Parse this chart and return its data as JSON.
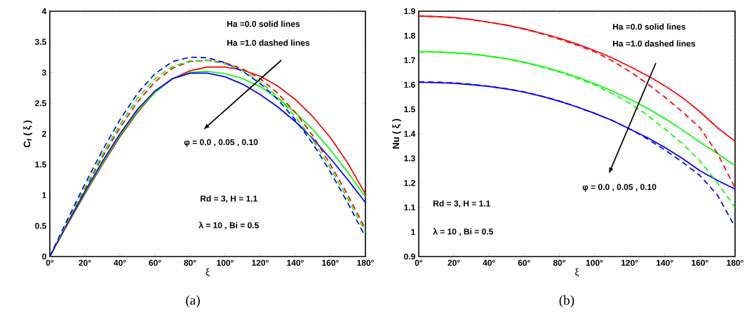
{
  "chart_data": [
    {
      "type": "line",
      "title": "(a)",
      "xlabel": "ξ",
      "ylabel": "C$_{f}$ ( ξ )",
      "marker": "none",
      "grid": false,
      "x": [
        0,
        10,
        20,
        30,
        40,
        50,
        60,
        70,
        80,
        90,
        100,
        110,
        120,
        130,
        140,
        150,
        160,
        170,
        180
      ],
      "xlim": [
        0,
        180
      ],
      "ylim": [
        0,
        4
      ],
      "xticks": [
        {
          "value": 0,
          "label": "0°"
        },
        {
          "value": 20,
          "label": "20°"
        },
        {
          "value": 40,
          "label": "40°"
        },
        {
          "value": 60,
          "label": "60°"
        },
        {
          "value": 80,
          "label": "80°"
        },
        {
          "value": 100,
          "label": "100°"
        },
        {
          "value": 120,
          "label": "120°"
        },
        {
          "value": 140,
          "label": "140°"
        },
        {
          "value": 160,
          "label": "160°"
        },
        {
          "value": 180,
          "label": "180°"
        }
      ],
      "yticks": [
        0,
        0.5,
        1,
        1.5,
        2,
        2.5,
        3,
        3.5,
        4
      ],
      "annotations": [
        "Ha =0.0 solid lines",
        "Ha =1.0 dashed lines",
        "φ = 0.0 , 0.05 , 0.10",
        "Rd = 3, H = 1.1",
        "λ = 10 , Bi = 0.5"
      ],
      "series": [
        {
          "color": "#ff0000",
          "line_style": "solid",
          "values": [
            0,
            0.52,
            1.02,
            1.5,
            1.95,
            2.35,
            2.68,
            2.9,
            3.03,
            3.09,
            3.09,
            3.04,
            2.94,
            2.78,
            2.56,
            2.28,
            1.94,
            1.52,
            1.02
          ]
        },
        {
          "color": "#00ff00",
          "line_style": "solid",
          "values": [
            0,
            0.53,
            1.04,
            1.52,
            1.97,
            2.37,
            2.68,
            2.9,
            3.0,
            3.02,
            2.98,
            2.9,
            2.77,
            2.58,
            2.35,
            2.07,
            1.74,
            1.37,
            0.97
          ]
        },
        {
          "color": "#0000ff",
          "line_style": "solid",
          "values": [
            0,
            0.54,
            1.06,
            1.55,
            2.0,
            2.4,
            2.7,
            2.9,
            2.99,
            2.99,
            2.93,
            2.81,
            2.64,
            2.44,
            2.2,
            1.92,
            1.6,
            1.25,
            0.88
          ]
        },
        {
          "color": "#ff0000",
          "line_style": "dashed",
          "values": [
            0,
            0.56,
            1.1,
            1.62,
            2.1,
            2.52,
            2.85,
            3.07,
            3.18,
            3.2,
            3.16,
            3.06,
            2.9,
            2.66,
            2.35,
            1.97,
            1.5,
            1.0,
            0.45
          ]
        },
        {
          "color": "#00ff00",
          "line_style": "dashed",
          "values": [
            0,
            0.57,
            1.12,
            1.66,
            2.15,
            2.58,
            2.9,
            3.1,
            3.19,
            3.2,
            3.14,
            3.03,
            2.85,
            2.6,
            2.28,
            1.9,
            1.44,
            0.94,
            0.4
          ]
        },
        {
          "color": "#0000ff",
          "line_style": "dashed",
          "values": [
            0,
            0.6,
            1.18,
            1.73,
            2.23,
            2.66,
            2.98,
            3.18,
            3.25,
            3.24,
            3.16,
            3.02,
            2.82,
            2.56,
            2.23,
            1.84,
            1.38,
            0.87,
            0.32
          ]
        }
      ]
    },
    {
      "type": "line",
      "title": "(b)",
      "xlabel": "ξ",
      "ylabel": "Nu ( ξ )",
      "marker": "none",
      "grid": false,
      "x": [
        0,
        10,
        20,
        30,
        40,
        50,
        60,
        70,
        80,
        90,
        100,
        110,
        120,
        130,
        140,
        150,
        160,
        170,
        180
      ],
      "xlim": [
        0,
        180
      ],
      "ylim": [
        0.9,
        1.9
      ],
      "xticks": [
        {
          "value": 0,
          "label": "0°"
        },
        {
          "value": 20,
          "label": "20°"
        },
        {
          "value": 40,
          "label": "40°"
        },
        {
          "value": 60,
          "label": "60°"
        },
        {
          "value": 80,
          "label": "80°"
        },
        {
          "value": 100,
          "label": "100°"
        },
        {
          "value": 120,
          "label": "120°"
        },
        {
          "value": 140,
          "label": "140°"
        },
        {
          "value": 160,
          "label": "160°"
        },
        {
          "value": 180,
          "label": "180°"
        }
      ],
      "yticks": [
        0.9,
        1,
        1.1,
        1.2,
        1.3,
        1.4,
        1.5,
        1.6,
        1.7,
        1.8,
        1.9
      ],
      "annotations": [
        "Ha =0.0 solid lines",
        "Ha =1.0 dashed lines",
        "φ = 0.0 , 0.05 , 0.10",
        "Rd = 3, H = 1.1",
        "λ = 10 , Bi = 0.5"
      ],
      "series": [
        {
          "color": "#ff0000",
          "line_style": "solid",
          "values": [
            1.88,
            1.878,
            1.874,
            1.866,
            1.855,
            1.843,
            1.828,
            1.81,
            1.79,
            1.766,
            1.74,
            1.71,
            1.675,
            1.638,
            1.596,
            1.548,
            1.49,
            1.425,
            1.37
          ]
        },
        {
          "color": "#00ff00",
          "line_style": "solid",
          "values": [
            1.735,
            1.734,
            1.73,
            1.725,
            1.717,
            1.706,
            1.692,
            1.675,
            1.655,
            1.632,
            1.605,
            1.575,
            1.542,
            1.505,
            1.462,
            1.416,
            1.366,
            1.32,
            1.27
          ]
        },
        {
          "color": "#0000ff",
          "line_style": "solid",
          "values": [
            1.61,
            1.609,
            1.606,
            1.6,
            1.593,
            1.583,
            1.57,
            1.553,
            1.533,
            1.51,
            1.484,
            1.455,
            1.42,
            1.385,
            1.345,
            1.3,
            1.25,
            1.21,
            1.175
          ]
        },
        {
          "color": "#ff0000",
          "line_style": "dashed",
          "values": [
            1.88,
            1.878,
            1.874,
            1.866,
            1.855,
            1.843,
            1.827,
            1.808,
            1.786,
            1.762,
            1.735,
            1.698,
            1.655,
            1.605,
            1.55,
            1.49,
            1.425,
            1.32,
            1.18
          ]
        },
        {
          "color": "#00ff00",
          "line_style": "dashed",
          "values": [
            1.735,
            1.734,
            1.73,
            1.725,
            1.717,
            1.706,
            1.691,
            1.673,
            1.652,
            1.628,
            1.6,
            1.565,
            1.525,
            1.477,
            1.42,
            1.36,
            1.29,
            1.2,
            1.1
          ]
        },
        {
          "color": "#0000ff",
          "line_style": "dashed",
          "values": [
            1.612,
            1.611,
            1.608,
            1.602,
            1.594,
            1.584,
            1.571,
            1.554,
            1.534,
            1.51,
            1.484,
            1.455,
            1.42,
            1.38,
            1.335,
            1.285,
            1.23,
            1.15,
            1.02
          ]
        }
      ]
    }
  ]
}
